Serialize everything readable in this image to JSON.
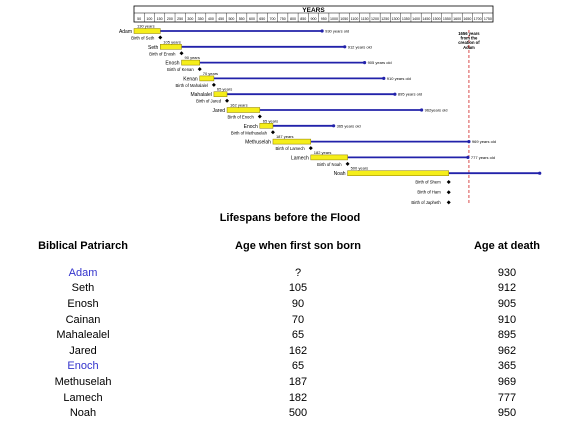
{
  "chart_data": {
    "type": "timeline",
    "title": "YEARS",
    "x_ticks": [
      50,
      100,
      150,
      200,
      250,
      300,
      350,
      400,
      450,
      500,
      550,
      600,
      650,
      700,
      750,
      800,
      850,
      900,
      950,
      1000,
      1050,
      1100,
      1150,
      1200,
      1250,
      1300,
      1350,
      1400,
      1450,
      1500,
      1550,
      1600,
      1650,
      1700,
      1750
    ],
    "xlim": [
      0,
      1775
    ],
    "flood_year": 1656,
    "flood_label": [
      "1656 years",
      "from the",
      "creation of",
      "Adam"
    ],
    "patriarchs": [
      {
        "name": "Adam",
        "start": 0,
        "son_age": 130,
        "death_age": 930,
        "son_label": "130 years",
        "death_label": "930 years old",
        "birth_label": "Birth of Seth"
      },
      {
        "name": "Seth",
        "start": 130,
        "son_age": 105,
        "death_age": 912,
        "son_label": "105 years",
        "death_label": "912 years old",
        "birth_label": "Birth of Enosh"
      },
      {
        "name": "Enosh",
        "start": 235,
        "son_age": 90,
        "death_age": 905,
        "son_label": "90 years",
        "death_label": "905 years old",
        "birth_label": "Birth of Kenan"
      },
      {
        "name": "Kenan",
        "start": 325,
        "son_age": 70,
        "death_age": 910,
        "son_label": "70 years",
        "death_label": "910 years old",
        "birth_label": "Birth of Mahalalel"
      },
      {
        "name": "Mahalalel",
        "start": 395,
        "son_age": 65,
        "death_age": 895,
        "son_label": "65 years",
        "death_label": "895 years old",
        "birth_label": "Birth of Jared"
      },
      {
        "name": "Jared",
        "start": 460,
        "son_age": 162,
        "death_age": 962,
        "son_label": "162 years",
        "death_label": "962years old",
        "birth_label": "Birth of Enoch"
      },
      {
        "name": "Enoch",
        "start": 622,
        "son_age": 65,
        "death_age": 365,
        "son_label": "65 years",
        "death_label": "365 years old",
        "birth_label": "Birth of Methuselah"
      },
      {
        "name": "Methuselah",
        "start": 687,
        "son_age": 187,
        "death_age": 969,
        "son_label": "187 years",
        "death_label": "969 years old",
        "birth_label": "Birth of Lamech"
      },
      {
        "name": "Lamech",
        "start": 874,
        "son_age": 182,
        "death_age": 777,
        "son_label": "182 years",
        "death_label": "777 years old",
        "birth_label": "Birth of Noah"
      },
      {
        "name": "Noah",
        "start": 1056,
        "son_age": 500,
        "death_age": 950,
        "son_label": "500 years",
        "death_label": "",
        "birth_label": ""
      }
    ],
    "noah_sons": [
      {
        "label": "Birth of Shem",
        "year": 1556
      },
      {
        "label": "Birth of Ham",
        "year": 1556
      },
      {
        "label": "Birth of Japheth",
        "year": 1556
      }
    ],
    "colors": {
      "bar": "#f5ee1a",
      "bar_border": "#8a7a00",
      "line": "#2222aa",
      "marker": "#000000",
      "flood": "#d02020"
    }
  },
  "table": {
    "title": "Lifespans before the Flood",
    "headers": [
      "Biblical Patriarch",
      "Age when first son born",
      "Age at death"
    ],
    "rows": [
      {
        "name": "Adam",
        "son": "?",
        "death": "930",
        "link": true
      },
      {
        "name": "Seth",
        "son": "105",
        "death": "912",
        "link": false
      },
      {
        "name": "Enosh",
        "son": "90",
        "death": "905",
        "link": false
      },
      {
        "name": "Cainan",
        "son": "70",
        "death": "910",
        "link": false
      },
      {
        "name": "Mahalealel",
        "son": "65",
        "death": "895",
        "link": false
      },
      {
        "name": "Jared",
        "son": "162",
        "death": "962",
        "link": false
      },
      {
        "name": "Enoch",
        "son": "65",
        "death": "365",
        "link": true
      },
      {
        "name": "Methuselah",
        "son": "187",
        "death": "969",
        "link": false
      },
      {
        "name": "Lamech",
        "son": "182",
        "death": "777",
        "link": false
      },
      {
        "name": "Noah",
        "son": "500",
        "death": "950",
        "link": false
      }
    ]
  }
}
